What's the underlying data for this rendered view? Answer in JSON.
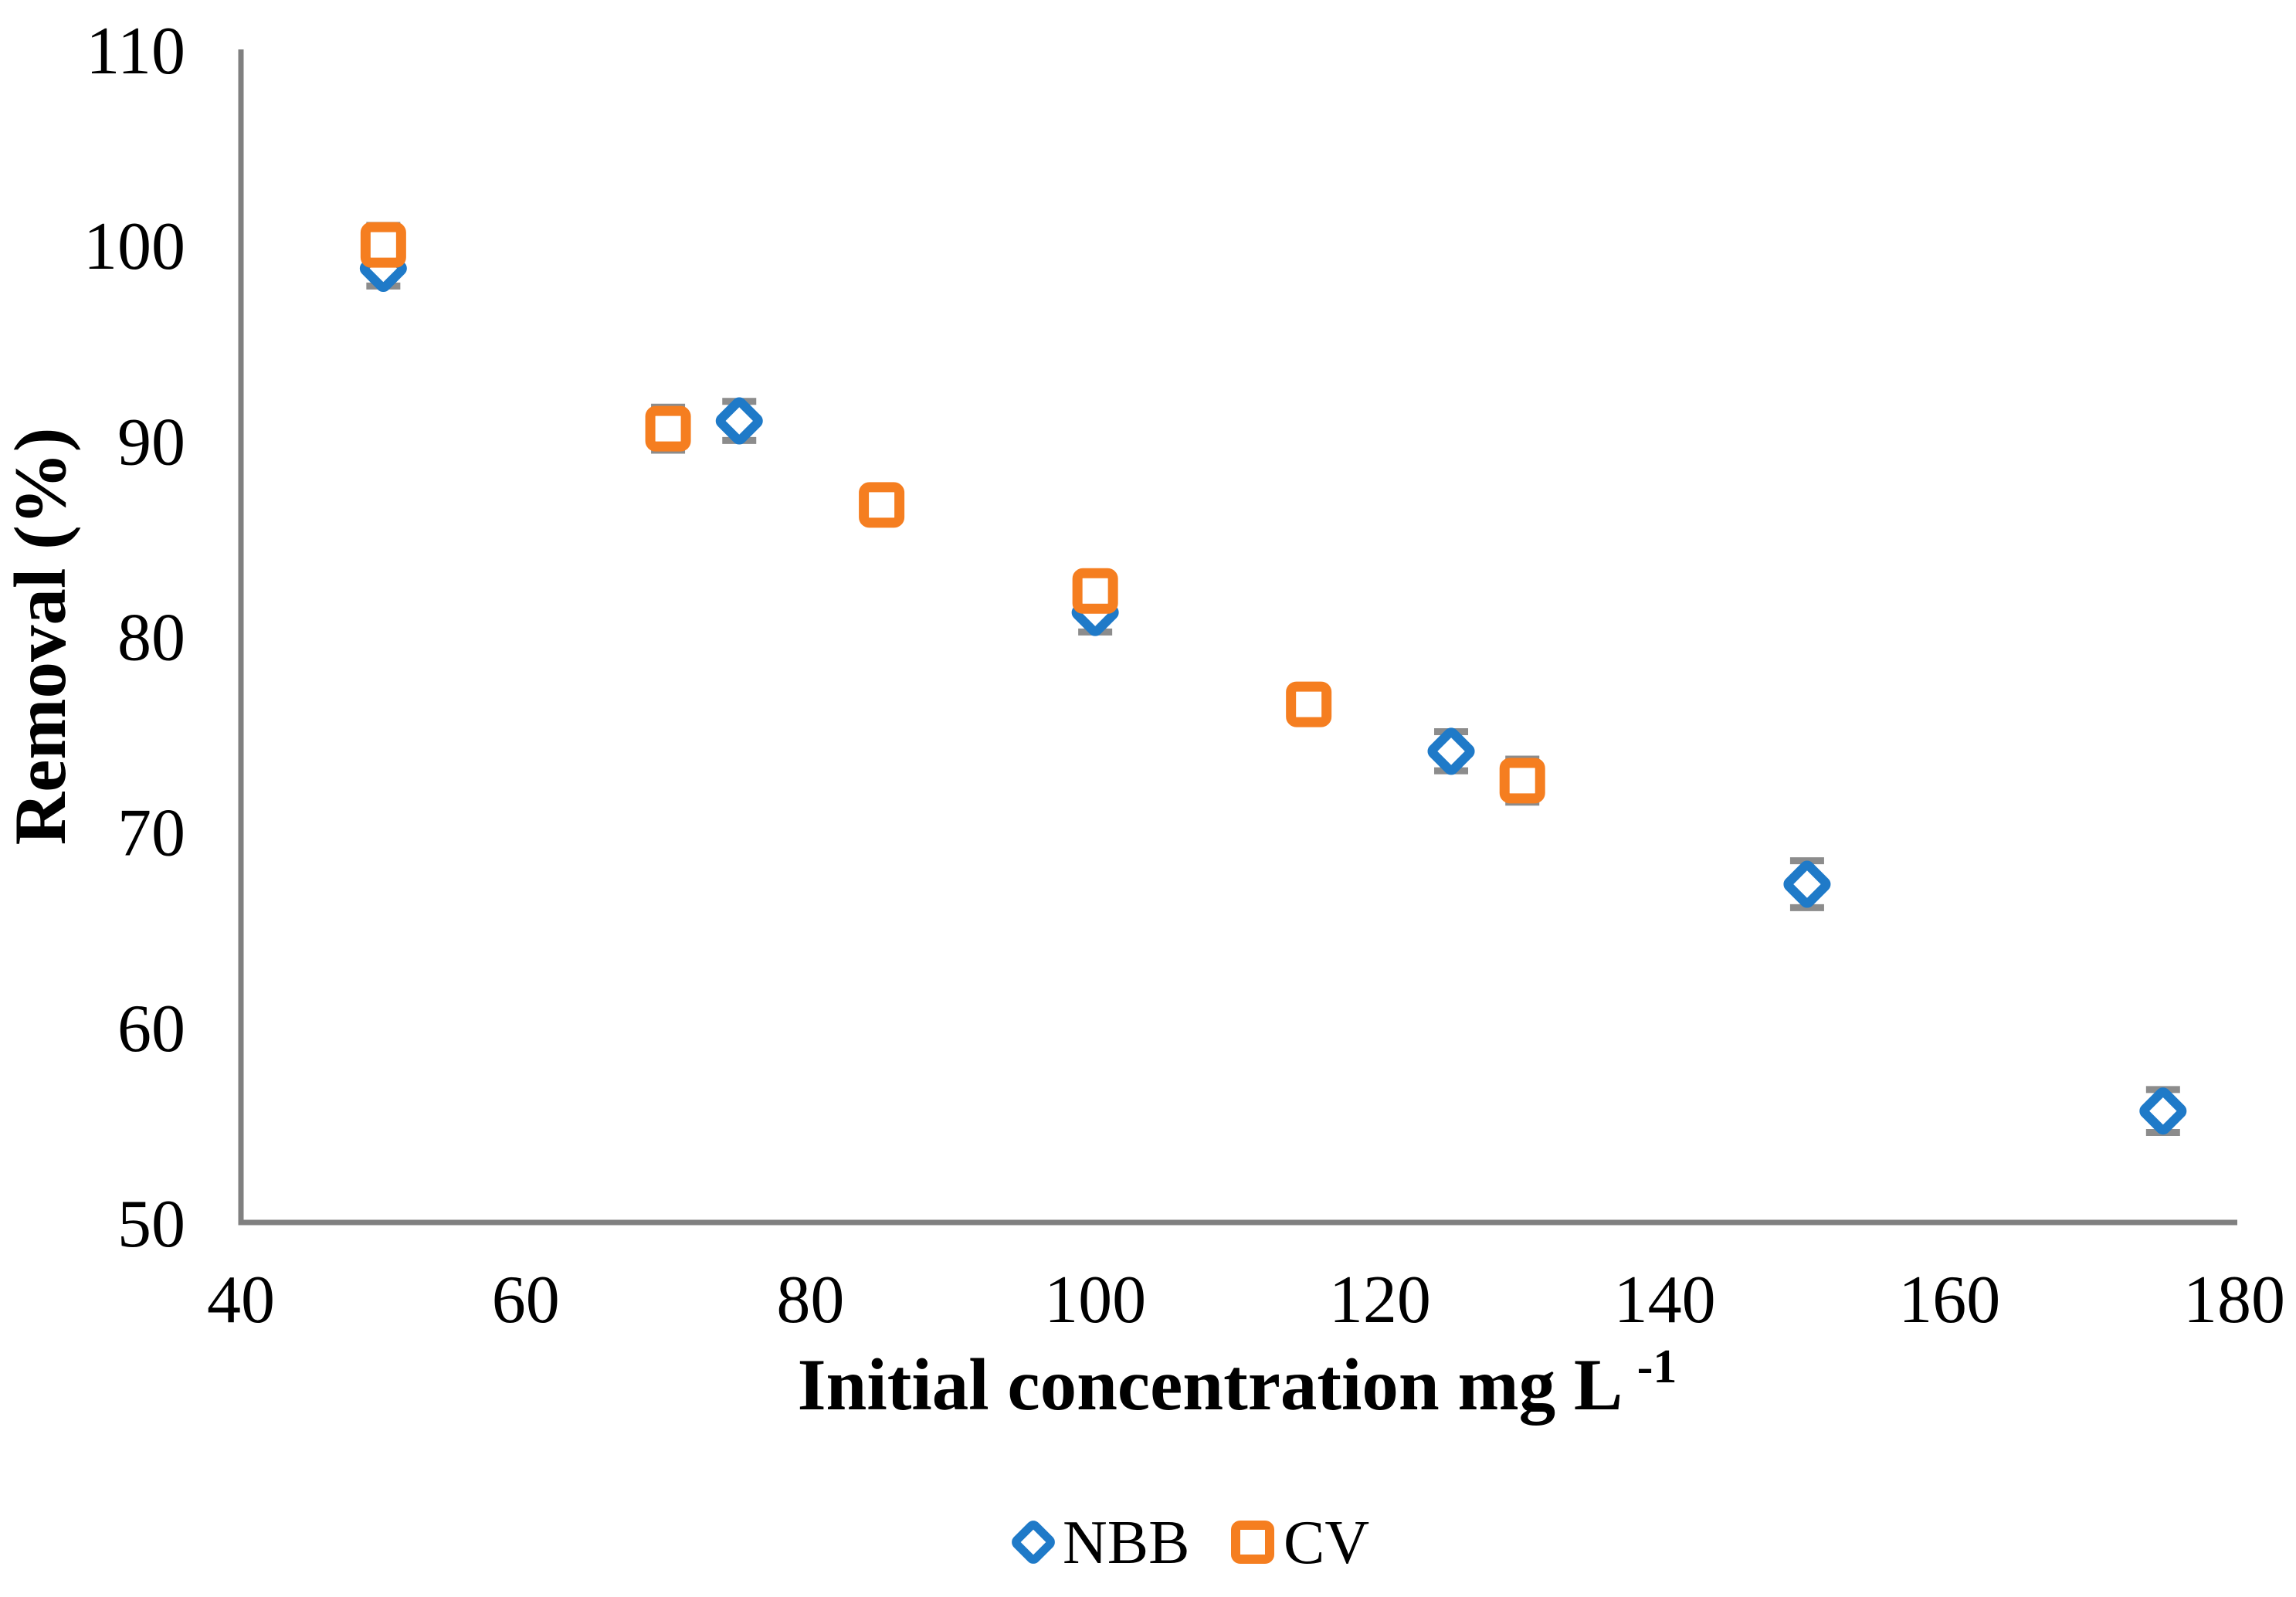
{
  "figure": {
    "background": "#FFFFFF"
  },
  "chart_data": {
    "type": "scatter",
    "title": "",
    "xlabel": "Initial concentration mg L-1",
    "xlabel_parts": {
      "text": "Initial concentration mg L",
      "superscript": "-1"
    },
    "ylabel": "Removal (%)",
    "xlim": [
      40,
      180
    ],
    "ylim": [
      50,
      110
    ],
    "x_ticks": [
      40,
      60,
      80,
      100,
      120,
      140,
      160,
      180
    ],
    "y_ticks": [
      50,
      60,
      70,
      80,
      90,
      100,
      110
    ],
    "grid": false,
    "legend_position": "bottom-center",
    "axis_color": "#808080",
    "error_bar_color": "#8C8C8C",
    "series": [
      {
        "name": "NBB",
        "marker": "diamond",
        "color": "#1F7AC8",
        "points": [
          {
            "x": 50,
            "y": 98.8,
            "err": 0.9
          },
          {
            "x": 75,
            "y": 91.0,
            "err": 1.0
          },
          {
            "x": 100,
            "y": 81.2,
            "err": 1.0
          },
          {
            "x": 125,
            "y": 74.1,
            "err": 1.0
          },
          {
            "x": 150,
            "y": 67.3,
            "err": 1.2
          },
          {
            "x": 175,
            "y": 55.7,
            "err": 1.1
          }
        ]
      },
      {
        "name": "CV",
        "marker": "square",
        "color": "#F57E20",
        "points": [
          {
            "x": 50,
            "y": 100.0,
            "err": 1.0
          },
          {
            "x": 70,
            "y": 90.6,
            "err": 1.1
          },
          {
            "x": 85,
            "y": 86.7,
            "err": 0.9
          },
          {
            "x": 100,
            "y": 82.3,
            "err": 0.9
          },
          {
            "x": 115,
            "y": 76.5,
            "err": 0.9
          },
          {
            "x": 130,
            "y": 72.6,
            "err": 1.1
          }
        ]
      }
    ]
  }
}
